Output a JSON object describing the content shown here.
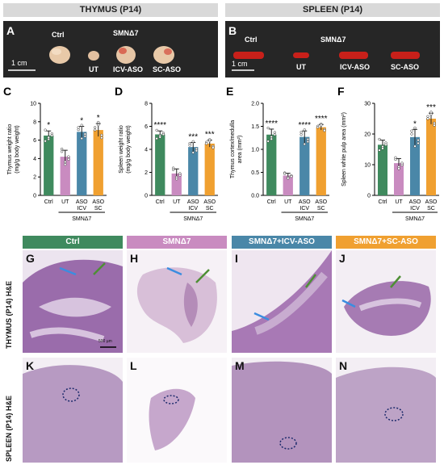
{
  "headers": {
    "thymus": "THYMUS (P14)",
    "spleen": "SPLEEN (P14)"
  },
  "panel_a": {
    "letter": "A",
    "ctrl": "Ctrl",
    "model": "SMNΔ7",
    "ut": "UT",
    "icv": "ICV-ASO",
    "sc": "SC-ASO",
    "scale": "1 cm"
  },
  "panel_b": {
    "letter": "B",
    "ctrl": "Ctrl",
    "model": "SMNΔ7",
    "ut": "UT",
    "icv": "ICV-ASO",
    "sc": "SC-ASO",
    "scale": "1 cm"
  },
  "colors": {
    "ctrl": "#3f8a5e",
    "ut": "#c98bc0",
    "icv": "#4a87a8",
    "sc": "#f0a030",
    "photo_bg": "#262626",
    "organ_thymus": "#e8c9a8",
    "organ_spleen": "#c8201a"
  },
  "chart_data": [
    {
      "type": "bar",
      "letter": "C",
      "ylabel": "Thymus weight ratio\n(mg/g body weight)",
      "ylim": [
        0,
        10
      ],
      "yticks": [
        0,
        2,
        4,
        6,
        8,
        10
      ],
      "categories": [
        "Ctrl",
        "UT",
        "ASO ICV",
        "ASO SC"
      ],
      "values": [
        6.5,
        4.2,
        6.9,
        7.1
      ],
      "errors": [
        0.5,
        0.7,
        0.6,
        0.7
      ],
      "sig": [
        "*",
        "",
        "*",
        "*"
      ],
      "group_label": "SMNΔ7"
    },
    {
      "type": "bar",
      "letter": "D",
      "ylabel": "Spleen weight ratio\n(mg/g body weight)",
      "ylim": [
        0,
        8
      ],
      "yticks": [
        0,
        2,
        4,
        6,
        8
      ],
      "categories": [
        "Ctrl",
        "UT",
        "ASO ICV",
        "ASO SC"
      ],
      "values": [
        5.3,
        1.9,
        4.2,
        4.5
      ],
      "errors": [
        0.3,
        0.4,
        0.4,
        0.3
      ],
      "sig": [
        "****",
        "",
        "***",
        "***"
      ],
      "group_label": "SMNΔ7"
    },
    {
      "type": "bar",
      "letter": "E",
      "ylabel": "Thymus cortex/medulla\narea (mm²)",
      "ylim": [
        0,
        2.0
      ],
      "yticks": [
        0.0,
        0.5,
        1.0,
        1.5,
        2.0
      ],
      "categories": [
        "Ctrl",
        "UT",
        "ASO ICV",
        "ASO SC"
      ],
      "values": [
        1.32,
        0.43,
        1.27,
        1.48
      ],
      "errors": [
        0.12,
        0.05,
        0.13,
        0.06
      ],
      "sig": [
        "****",
        "",
        "****",
        "****"
      ],
      "group_label": "SMNΔ7"
    },
    {
      "type": "bar",
      "letter": "F",
      "ylabel": "Spleen white pulp area (mm²)",
      "ylim": [
        0,
        30
      ],
      "yticks": [
        0,
        10,
        20,
        30
      ],
      "categories": [
        "Ctrl",
        "UT",
        "ASO ICV",
        "ASO SC"
      ],
      "values": [
        16.5,
        10.5,
        19,
        25
      ],
      "errors": [
        1.5,
        1.5,
        2.5,
        1.8
      ],
      "sig": [
        "",
        "",
        "*",
        "***"
      ],
      "group_label": "SMNΔ7"
    }
  ],
  "histology": {
    "columns": [
      "Ctrl",
      "SMNΔ7",
      "SMNΔ7+ICV-ASO",
      "SMNΔ7+SC-ASO"
    ],
    "row_labels": [
      "THYMUS (P14) H&E",
      "SPLEEN (P14) H&E"
    ],
    "thymus_letters": [
      "G",
      "H",
      "I",
      "J"
    ],
    "spleen_letters": [
      "K",
      "L",
      "M",
      "N"
    ],
    "scale": "500 µm"
  }
}
